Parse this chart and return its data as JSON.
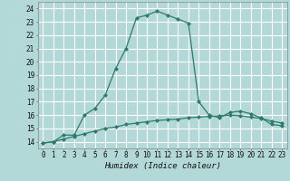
{
  "xlabel": "Humidex (Indice chaleur)",
  "bg_color": "#b2d8d8",
  "grid_color": "#ffffff",
  "line_color": "#2d7a6a",
  "xlim": [
    -0.5,
    23.5
  ],
  "ylim": [
    13.5,
    24.5
  ],
  "yticks": [
    14,
    15,
    16,
    17,
    18,
    19,
    20,
    21,
    22,
    23,
    24
  ],
  "xticks": [
    0,
    1,
    2,
    3,
    4,
    5,
    6,
    7,
    8,
    9,
    10,
    11,
    12,
    13,
    14,
    15,
    16,
    17,
    18,
    19,
    20,
    21,
    22,
    23
  ],
  "series1_x": [
    0,
    1,
    2,
    3,
    4,
    5,
    6,
    7,
    8,
    9,
    10,
    11,
    12,
    13,
    14,
    15,
    16,
    17,
    18,
    19,
    20,
    21,
    22,
    23
  ],
  "series1_y": [
    13.9,
    14.0,
    14.5,
    14.5,
    16.0,
    16.5,
    17.5,
    19.5,
    21.0,
    23.3,
    23.5,
    23.8,
    23.5,
    23.2,
    22.9,
    17.0,
    16.0,
    15.8,
    16.2,
    16.3,
    16.1,
    15.8,
    15.3,
    15.2
  ],
  "series2_x": [
    0,
    1,
    2,
    3,
    4,
    5,
    6,
    7,
    8,
    9,
    10,
    11,
    12,
    13,
    14,
    15,
    16,
    17,
    18,
    19,
    20,
    21,
    22,
    23
  ],
  "series2_y": [
    13.9,
    14.0,
    14.2,
    14.4,
    14.6,
    14.8,
    15.0,
    15.1,
    15.3,
    15.4,
    15.5,
    15.6,
    15.65,
    15.7,
    15.8,
    15.85,
    15.9,
    15.95,
    16.0,
    15.95,
    15.85,
    15.75,
    15.55,
    15.4
  ]
}
